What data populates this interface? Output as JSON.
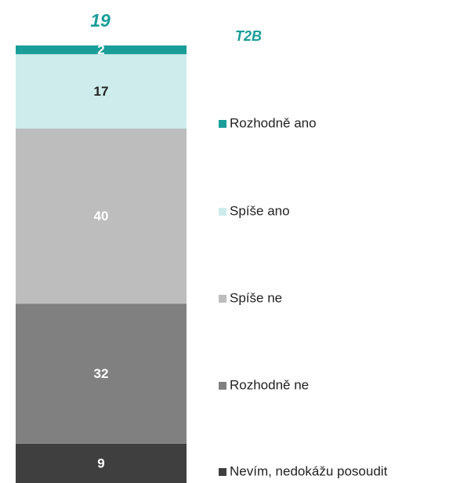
{
  "chart_data": {
    "type": "bar",
    "total_label": {
      "value": 19,
      "label": "T2B"
    },
    "ylim": [
      0,
      100
    ],
    "series": [
      {
        "name": "Rozhodně ano",
        "color": "#1a9e9a",
        "values": [
          2
        ]
      },
      {
        "name": "Spíše ano",
        "color": "#cdeceb",
        "values": [
          17
        ]
      },
      {
        "name": "Spíše ne",
        "color": "#bdbdbd",
        "values": [
          40
        ]
      },
      {
        "name": "Rozhodně ne",
        "color": "#808080",
        "values": [
          32
        ]
      },
      {
        "name": "Nevím, nedokážu posoudit",
        "color": "#3f3f3f",
        "values": [
          9
        ]
      }
    ]
  }
}
